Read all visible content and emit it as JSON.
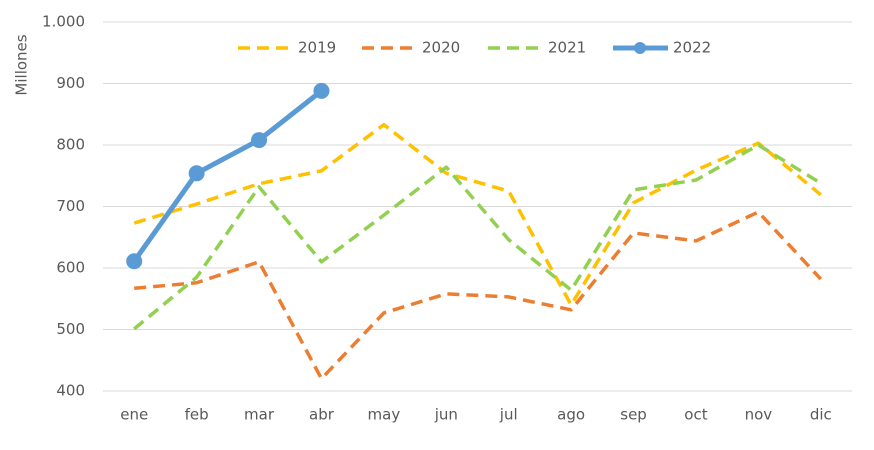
{
  "chart_data": {
    "type": "line",
    "y_label": "Millones",
    "categories": [
      "ene",
      "feb",
      "mar",
      "abr",
      "may",
      "jun",
      "jul",
      "ago",
      "sep",
      "oct",
      "nov",
      "dic"
    ],
    "series": [
      {
        "name": "2019",
        "color": "#FFC000",
        "dashed": true,
        "marker": false,
        "values": [
          673,
          704,
          737,
          758,
          833,
          754,
          725,
          540,
          706,
          759,
          803,
          719
        ]
      },
      {
        "name": "2020",
        "color": "#ED7D31",
        "dashed": true,
        "marker": false,
        "values": [
          567,
          576,
          610,
          420,
          527,
          558,
          553,
          532,
          657,
          644,
          691,
          582
        ]
      },
      {
        "name": "2021",
        "color": "#92D050",
        "dashed": true,
        "marker": false,
        "values": [
          501,
          585,
          732,
          610,
          686,
          764,
          646,
          564,
          727,
          743,
          800,
          738
        ]
      },
      {
        "name": "2022",
        "color": "#5B9BD5",
        "dashed": false,
        "marker": true,
        "values": [
          611,
          754,
          808,
          888,
          null,
          null,
          null,
          null,
          null,
          null,
          null,
          null
        ]
      }
    ],
    "ylim": [
      400,
      1000
    ],
    "yticks": [
      400,
      500,
      600,
      700,
      800,
      900,
      {
        "value": 1000,
        "label": "1.000"
      }
    ],
    "grid": true,
    "legend": "top"
  }
}
